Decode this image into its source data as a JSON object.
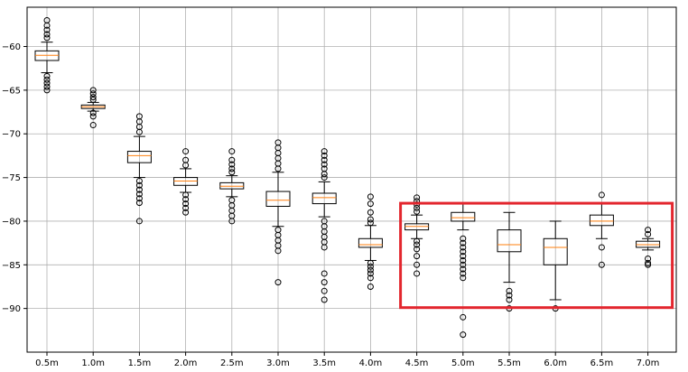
{
  "chart_data": {
    "type": "box",
    "title": "",
    "xlabel": "",
    "ylabel": "",
    "grid": true,
    "ylim": [
      -95,
      -55.5
    ],
    "yticks": [
      -60,
      -65,
      -70,
      -75,
      -80,
      -85,
      -90
    ],
    "categories": [
      "0.5m",
      "1.0m",
      "1.5m",
      "2.0m",
      "2.5m",
      "3.0m",
      "3.5m",
      "4.0m",
      "4.5m",
      "5.0m",
      "5.5m",
      "6.0m",
      "6.5m",
      "7.0m"
    ],
    "boxes": [
      {
        "q1": -61.6,
        "median": -61.0,
        "q3": -60.5,
        "whisker_low": -63.0,
        "whisker_high": -59.5,
        "outliers": [
          -57.0,
          -57.6,
          -58.1,
          -58.6,
          -59.0,
          -63.4,
          -63.8,
          -64.2,
          -64.6,
          -65.0
        ]
      },
      {
        "q1": -67.1,
        "median": -66.9,
        "q3": -66.7,
        "whisker_low": -67.4,
        "whisker_high": -66.4,
        "outliers": [
          -65.0,
          -65.4,
          -65.8,
          -66.1,
          -67.6,
          -68.0,
          -69.0
        ]
      },
      {
        "q1": -73.3,
        "median": -72.5,
        "q3": -72.0,
        "whisker_low": -75.0,
        "whisker_high": -70.3,
        "outliers": [
          -68.0,
          -68.6,
          -69.2,
          -69.8,
          -75.4,
          -75.9,
          -76.4,
          -76.9,
          -77.4,
          -77.9,
          -80.0
        ]
      },
      {
        "q1": -75.9,
        "median": -75.4,
        "q3": -75.0,
        "whisker_low": -76.7,
        "whisker_high": -74.0,
        "outliers": [
          -72.0,
          -73.0,
          -73.6,
          -77.0,
          -77.5,
          -78.0,
          -78.5,
          -79.0
        ]
      },
      {
        "q1": -76.3,
        "median": -76.0,
        "q3": -75.6,
        "whisker_low": -77.2,
        "whisker_high": -74.8,
        "outliers": [
          -72.0,
          -73.0,
          -73.5,
          -74.0,
          -74.4,
          -77.6,
          -78.2,
          -78.8,
          -79.4,
          -80.0
        ]
      },
      {
        "q1": -78.3,
        "median": -77.6,
        "q3": -76.6,
        "whisker_low": -80.6,
        "whisker_high": -74.4,
        "outliers": [
          -71.0,
          -71.6,
          -72.2,
          -72.8,
          -73.4,
          -74.0,
          -81.0,
          -81.6,
          -82.2,
          -82.8,
          -83.4,
          -87.0
        ]
      },
      {
        "q1": -78.0,
        "median": -77.3,
        "q3": -76.8,
        "whisker_low": -79.5,
        "whisker_high": -75.5,
        "outliers": [
          -72.0,
          -72.5,
          -73.0,
          -73.5,
          -74.0,
          -74.6,
          -75.0,
          -80.0,
          -80.6,
          -81.2,
          -81.8,
          -82.4,
          -83.0,
          -86.0,
          -87.0,
          -88.0,
          -89.0
        ]
      },
      {
        "q1": -83.0,
        "median": -82.7,
        "q3": -82.0,
        "whisker_low": -84.5,
        "whisker_high": -80.5,
        "outliers": [
          -77.2,
          -78.0,
          -79.0,
          -79.8,
          -80.2,
          -84.8,
          -85.2,
          -85.6,
          -86.0,
          -86.5,
          -87.5
        ]
      },
      {
        "q1": -81.0,
        "median": -80.6,
        "q3": -80.3,
        "whisker_low": -82.0,
        "whisker_high": -79.3,
        "outliers": [
          -77.3,
          -77.7,
          -78.1,
          -78.5,
          -78.9,
          -82.3,
          -82.7,
          -83.2,
          -84.0,
          -85.0,
          -86.0
        ]
      },
      {
        "q1": -80.0,
        "median": -79.6,
        "q3": -79.0,
        "whisker_low": -81.0,
        "whisker_high": -78.0,
        "outliers": [
          -82.0,
          -82.5,
          -83.0,
          -83.5,
          -84.0,
          -84.5,
          -85.0,
          -85.5,
          -86.0,
          -86.5,
          -91.0,
          -93.0
        ]
      },
      {
        "q1": -83.5,
        "median": -82.7,
        "q3": -81.0,
        "whisker_low": -87.0,
        "whisker_high": -79.0,
        "outliers": [
          -88.0,
          -88.5,
          -89.0,
          -90.0
        ]
      },
      {
        "q1": -85.0,
        "median": -83.0,
        "q3": -82.0,
        "whisker_low": -89.0,
        "whisker_high": -80.0,
        "outliers": [
          -90.0
        ]
      },
      {
        "q1": -80.5,
        "median": -80.0,
        "q3": -79.3,
        "whisker_low": -82.0,
        "whisker_high": -78.0,
        "outliers": [
          -77.0,
          -83.0,
          -85.0
        ]
      },
      {
        "q1": -83.0,
        "median": -82.7,
        "q3": -82.3,
        "whisker_low": -83.3,
        "whisker_high": -82.0,
        "outliers": [
          -81.0,
          -81.5,
          -84.3,
          -84.8,
          -85.0
        ]
      }
    ],
    "annotation": {
      "shape": "rectangle",
      "color": "#e3262e",
      "from_category": "4.5m",
      "to_category": "7.0m",
      "y_from": -78.0,
      "y_to": -89.9
    },
    "colors": {
      "box": "#000000",
      "median": "#ff7f0e",
      "grid": "#b0b0b0",
      "annotation": "#e3262e"
    }
  }
}
